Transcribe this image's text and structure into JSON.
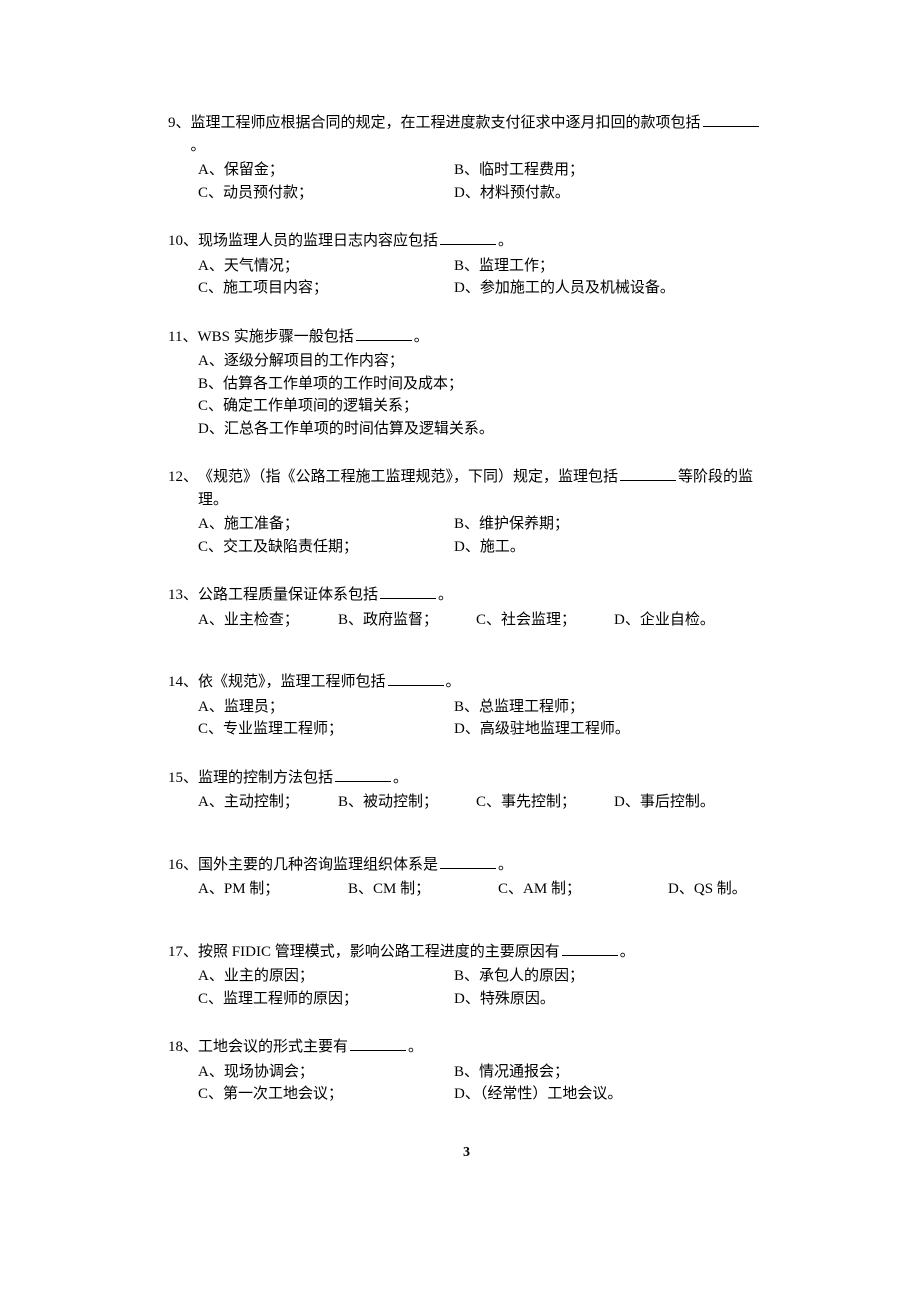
{
  "page_number": "3",
  "questions": [
    {
      "num": "9、",
      "stem_pre": "监理工程师应根据合同的规定，在工程进度款支付征求中逐月扣回的款项包括",
      "stem_post": "。",
      "opts": [
        {
          "k": "A",
          "t": "保留金；"
        },
        {
          "k": "B",
          "t": "临时工程费用；"
        },
        {
          "k": "C",
          "t": "动员预付款；"
        },
        {
          "k": "D",
          "t": "材料预付款。"
        }
      ],
      "layout": "2col"
    },
    {
      "num": "10、",
      "stem_pre": "现场监理人员的监理日志内容应包括",
      "stem_post": "。",
      "opts": [
        {
          "k": "A",
          "t": "天气情况；"
        },
        {
          "k": "B",
          "t": "监理工作；"
        },
        {
          "k": "C",
          "t": "施工项目内容；"
        },
        {
          "k": "D",
          "t": "参加施工的人员及机械设备。"
        }
      ],
      "layout": "2col"
    },
    {
      "num": "11、",
      "stem_pre_roman": "WBS ",
      "stem_pre": "实施步骤一般包括",
      "stem_post": "。",
      "opts": [
        {
          "k": "A",
          "t": "逐级分解项目的工作内容；"
        },
        {
          "k": "B",
          "t": "估算各工作单项的工作时间及成本；"
        },
        {
          "k": "C",
          "t": "确定工作单项间的逻辑关系；"
        },
        {
          "k": "D",
          "t": "汇总各工作单项的时间估算及逻辑关系。"
        }
      ],
      "layout": "1col"
    },
    {
      "num": "12、",
      "stem_pre": "《规范》（指《公路工程施工监理规范》，下同）规定，监理包括",
      "stem_post": "等阶段的监理。",
      "opts": [
        {
          "k": "A",
          "t": "施工准备；"
        },
        {
          "k": "B",
          "t": "维护保养期；"
        },
        {
          "k": "C",
          "t": "交工及缺陷责任期；"
        },
        {
          "k": "D",
          "t": "施工。"
        }
      ],
      "layout": "2col"
    },
    {
      "num": "13、",
      "stem_pre": "公路工程质量保证体系包括",
      "stem_post": "。",
      "opts": [
        {
          "k": "A",
          "t": "业主检查；"
        },
        {
          "k": "B",
          "t": "政府监督；"
        },
        {
          "k": "C",
          "t": "社会监理；"
        },
        {
          "k": "D",
          "t": "企业自检。"
        }
      ],
      "layout": "4col",
      "extra_gap": true
    },
    {
      "num": "14、",
      "stem_pre": "依《规范》，监理工程师包括",
      "stem_post": "。",
      "opts": [
        {
          "k": "A",
          "t": "监理员；"
        },
        {
          "k": "B",
          "t": "总监理工程师；"
        },
        {
          "k": "C",
          "t": "专业监理工程师；"
        },
        {
          "k": "D",
          "t": "高级驻地监理工程师。"
        }
      ],
      "layout": "2col"
    },
    {
      "num": "15、",
      "stem_pre": "监理的控制方法包括",
      "stem_post": "。",
      "opts": [
        {
          "k": "A",
          "t": "主动控制；"
        },
        {
          "k": "B",
          "t": "被动控制；"
        },
        {
          "k": "C",
          "t": "事先控制；"
        },
        {
          "k": "D",
          "t": "事后控制。"
        }
      ],
      "layout": "4col",
      "extra_gap": true
    },
    {
      "num": "16、",
      "stem_pre": "国外主要的几种咨询监理组织体系是",
      "stem_post": "。",
      "opts": [
        {
          "k": "A",
          "t_roman": "PM ",
          "t": "制；"
        },
        {
          "k": "B",
          "t_roman": "CM ",
          "t": "制；"
        },
        {
          "k": "C",
          "t_roman": "AM ",
          "t": "制；"
        },
        {
          "k": "D",
          "t_roman": "QS ",
          "t": "制。"
        }
      ],
      "layout": "4col-wide",
      "extra_gap": true
    },
    {
      "num": "17、",
      "stem_pre_head": "按照 ",
      "stem_pre_roman": "FIDIC ",
      "stem_pre": "管理模式，影响公路工程进度的主要原因有",
      "stem_post": "。",
      "opts": [
        {
          "k": "A",
          "t": "业主的原因；"
        },
        {
          "k": "B",
          "t": "承包人的原因；"
        },
        {
          "k": "C",
          "t": "监理工程师的原因；"
        },
        {
          "k": "D",
          "t": "特殊原因。"
        }
      ],
      "layout": "2col"
    },
    {
      "num": "18、",
      "stem_pre": "工地会议的形式主要有",
      "stem_post": "。",
      "opts": [
        {
          "k": "A",
          "t": "现场协调会；"
        },
        {
          "k": "B",
          "t": "情况通报会；"
        },
        {
          "k": "C",
          "t": "第一次工地会议；"
        },
        {
          "k": "D",
          "t": "（经常性）工地会议。"
        }
      ],
      "layout": "2col"
    }
  ]
}
